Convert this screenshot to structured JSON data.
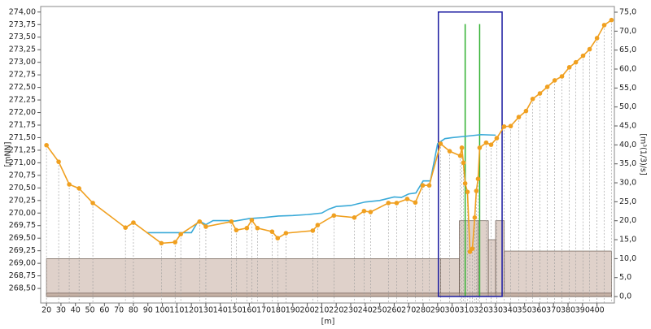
{
  "chart_data": {
    "type": "line",
    "xlabel": "[m]",
    "ylabel": "[mNN]",
    "y2label": "[m³(1/3)/s]",
    "xlim": [
      16,
      412
    ],
    "ylim": [
      268.21,
      274.11
    ],
    "y2lim": [
      -1.7,
      76.5
    ],
    "xticks": [
      20,
      30,
      40,
      50,
      60,
      70,
      80,
      90,
      100,
      110,
      120,
      130,
      140,
      150,
      160,
      170,
      180,
      190,
      200,
      210,
      220,
      230,
      240,
      250,
      260,
      270,
      280,
      290,
      300,
      310,
      320,
      330,
      340,
      350,
      360,
      370,
      380,
      390,
      400
    ],
    "yticks": [
      {
        "value": 268.5,
        "label": "268,50"
      },
      {
        "value": 268.75,
        "label": "268,75"
      },
      {
        "value": 269,
        "label": "269,00"
      },
      {
        "value": 269.25,
        "label": "269,25"
      },
      {
        "value": 269.5,
        "label": "269,50"
      },
      {
        "value": 269.75,
        "label": "269,75"
      },
      {
        "value": 270,
        "label": "270,00"
      },
      {
        "value": 270.25,
        "label": "270,25"
      },
      {
        "value": 270.5,
        "label": "270,50"
      },
      {
        "value": 270.75,
        "label": "270,75"
      },
      {
        "value": 271,
        "label": "271,00"
      },
      {
        "value": 271.25,
        "label": "271,25"
      },
      {
        "value": 271.5,
        "label": "271,50"
      },
      {
        "value": 271.75,
        "label": "271,75"
      },
      {
        "value": 272,
        "label": "272,00"
      },
      {
        "value": 272.25,
        "label": "272,25"
      },
      {
        "value": 272.5,
        "label": "272,50"
      },
      {
        "value": 272.75,
        "label": "272,75"
      },
      {
        "value": 273,
        "label": "273,00"
      },
      {
        "value": 273.25,
        "label": "273,25"
      },
      {
        "value": 273.5,
        "label": "273,50"
      },
      {
        "value": 273.75,
        "label": "273,75"
      },
      {
        "value": 274,
        "label": "274,00"
      }
    ],
    "y2ticks": [
      {
        "value": 0,
        "label": "0,0"
      },
      {
        "value": 5,
        "label": "5,0"
      },
      {
        "value": 10,
        "label": "10,0"
      },
      {
        "value": 15,
        "label": "15,0"
      },
      {
        "value": 20,
        "label": "20,0"
      },
      {
        "value": 25,
        "label": "25,0"
      },
      {
        "value": 30,
        "label": "30,0"
      },
      {
        "value": 35,
        "label": "35,0"
      },
      {
        "value": 40,
        "label": "40,0"
      },
      {
        "value": 45,
        "label": "45,0"
      },
      {
        "value": 50,
        "label": "50,0"
      },
      {
        "value": 55,
        "label": "55,0"
      },
      {
        "value": 60,
        "label": "60,0"
      },
      {
        "value": 65,
        "label": "65,0"
      },
      {
        "value": 70,
        "label": "70,0"
      },
      {
        "value": 75,
        "label": "75,0"
      }
    ],
    "bars": [
      {
        "axis": "y2",
        "color": "#c9b3a6",
        "bins": [
          20,
          292,
          305,
          318,
          325,
          330,
          336,
          410
        ],
        "values": [
          10,
          10,
          20,
          20,
          15,
          20,
          12
        ]
      },
      {
        "axis": "y2",
        "color": "#b59c8e",
        "bins": [
          20,
          410
        ],
        "values": [
          0.9
        ]
      }
    ],
    "series": [
      {
        "color": "#3aaad8",
        "x": [
          89,
          100,
          110,
          120,
          125,
          130,
          135,
          140,
          145,
          150,
          160,
          170,
          180,
          190,
          200,
          210,
          215,
          220,
          230,
          240,
          250,
          260,
          265,
          270,
          275,
          280,
          285,
          290,
          295,
          300,
          310,
          320,
          330
        ],
        "values": [
          269.61,
          269.61,
          269.61,
          269.61,
          269.85,
          269.77,
          269.85,
          269.85,
          269.85,
          269.84,
          269.89,
          269.91,
          269.94,
          269.95,
          269.97,
          270.0,
          270.08,
          270.13,
          270.15,
          270.22,
          270.25,
          270.32,
          270.31,
          270.38,
          270.4,
          270.64,
          270.64,
          271.38,
          271.48,
          271.5,
          271.53,
          271.56,
          271.55
        ]
      },
      {
        "color": "#f0a020",
        "markers": true,
        "x": [
          20,
          28.4,
          35.7,
          42.5,
          52,
          74.5,
          80,
          99.3,
          108.8,
          112.7,
          125.7,
          130,
          147.6,
          151,
          158.3,
          161.7,
          165.6,
          175.7,
          179.6,
          185.3,
          203.8,
          207.2,
          218.4,
          232.5,
          239.2,
          243.7,
          256,
          261.7,
          269,
          274.6,
          279.7,
          284.2,
          292,
          298.3,
          305.6,
          306.7,
          307.8,
          309,
          310.6,
          312.3,
          314,
          315.6,
          316.7,
          317.9,
          319,
          323.5,
          326.9,
          330.8,
          335.9,
          340.4,
          346,
          351,
          355.6,
          360.6,
          365.7,
          370.8,
          375.8,
          380.9,
          385.4,
          390.4,
          394.9,
          400,
          405,
          410
        ],
        "values": [
          271.35,
          271.02,
          270.57,
          270.49,
          270.2,
          269.71,
          269.81,
          269.4,
          269.42,
          269.58,
          269.83,
          269.73,
          269.83,
          269.66,
          269.7,
          269.86,
          269.7,
          269.63,
          269.5,
          269.6,
          269.65,
          269.76,
          269.95,
          269.91,
          270.04,
          270.02,
          270.2,
          270.2,
          270.28,
          270.21,
          270.55,
          270.55,
          271.38,
          271.23,
          271.14,
          271.3,
          271.0,
          270.59,
          270.42,
          269.23,
          269.29,
          269.91,
          270.44,
          270.68,
          271.3,
          271.4,
          271.36,
          271.49,
          271.72,
          271.73,
          271.91,
          272.03,
          272.27,
          272.38,
          272.51,
          272.64,
          272.72,
          272.9,
          273.0,
          273.13,
          273.26,
          273.48,
          273.74,
          273.84
        ]
      }
    ],
    "vlines": {
      "color": "#30b030",
      "x": [
        309,
        319
      ],
      "ylim": [
        268.34,
        273.76
      ]
    },
    "box": {
      "color": "#1a1aa0",
      "xlim": [
        290.5,
        334.5
      ],
      "ylim": [
        268.34,
        274.0
      ]
    }
  }
}
